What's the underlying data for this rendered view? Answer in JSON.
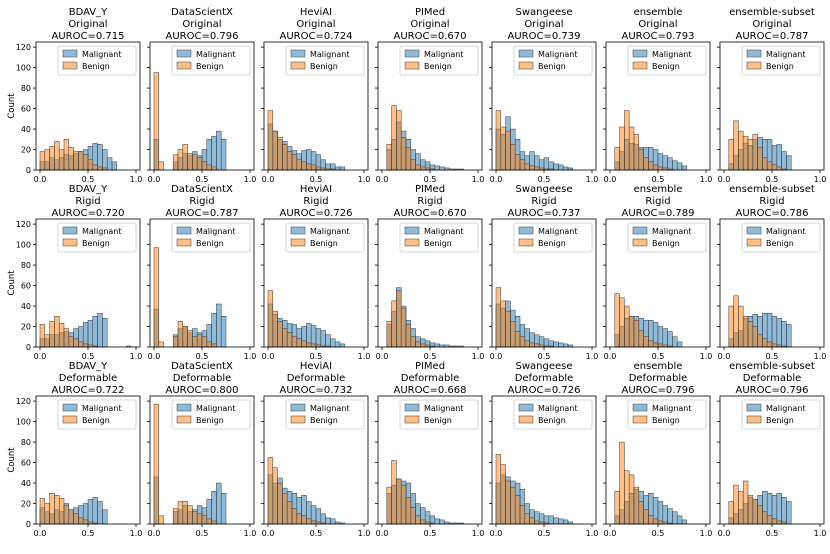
{
  "chart_data": {
    "type": "histogram-grid",
    "ylabel": "Count",
    "xlim": [
      0,
      1
    ],
    "ylim": [
      0,
      125
    ],
    "xticks": [
      "0.0",
      "0.5",
      "1.0"
    ],
    "yticks": [
      "0",
      "20",
      "40",
      "60",
      "80",
      "100",
      "120"
    ],
    "series": [
      {
        "key": "malignant",
        "name": "Malignant",
        "color": "#1f77b4"
      },
      {
        "key": "benign",
        "name": "Benign",
        "color": "#ff7f0e"
      }
    ],
    "panels": [
      {
        "team": "BDAV_Y",
        "variant": "Original",
        "auroc": "AUROC=0.715",
        "x0": 0.0,
        "binw": 0.05,
        "malignant": [
          8,
          8,
          12,
          10,
          12,
          15,
          14,
          16,
          18,
          20,
          23,
          26,
          25,
          20,
          12,
          8
        ],
        "benign": [
          18,
          20,
          23,
          28,
          20,
          30,
          22,
          18,
          18,
          15,
          10,
          5,
          3,
          2,
          0,
          0
        ]
      },
      {
        "team": "DataScientX",
        "variant": "Original",
        "auroc": "AUROC=0.796",
        "x0": 0.0,
        "binw": 0.05,
        "malignant": [
          30,
          0,
          0,
          0,
          8,
          12,
          16,
          14,
          18,
          14,
          20,
          30,
          33,
          38,
          30,
          0,
          0,
          0
        ],
        "benign": [
          95,
          8,
          0,
          0,
          15,
          20,
          25,
          16,
          15,
          12,
          8,
          5,
          3,
          0,
          0,
          0,
          0,
          0
        ]
      },
      {
        "team": "HeviAI",
        "variant": "Original",
        "auroc": "AUROC=0.724",
        "x0": 0.0,
        "binw": 0.05,
        "malignant": [
          45,
          38,
          30,
          28,
          23,
          19,
          16,
          19,
          20,
          18,
          15,
          10,
          6,
          6,
          3,
          3
        ],
        "benign": [
          58,
          38,
          32,
          25,
          18,
          15,
          10,
          8,
          6,
          5,
          3,
          2,
          1,
          1,
          0,
          0
        ]
      },
      {
        "team": "PIMed",
        "variant": "Original",
        "auroc": "AUROC=0.670",
        "x0": 0.05,
        "binw": 0.05,
        "malignant": [
          20,
          30,
          47,
          38,
          30,
          20,
          16,
          10,
          8,
          5,
          4,
          3,
          2,
          1,
          1,
          1
        ],
        "benign": [
          25,
          63,
          58,
          32,
          22,
          10,
          5,
          3,
          2,
          1,
          0,
          0,
          0,
          0,
          0,
          0
        ]
      },
      {
        "team": "Swangeese",
        "variant": "Original",
        "auroc": "AUROC=0.739",
        "x0": 0.0,
        "binw": 0.05,
        "malignant": [
          40,
          35,
          52,
          40,
          30,
          18,
          14,
          18,
          14,
          10,
          12,
          8,
          6,
          5,
          3,
          2
        ],
        "benign": [
          58,
          42,
          38,
          25,
          15,
          10,
          6,
          4,
          3,
          2,
          1,
          1,
          0,
          0,
          0,
          0
        ]
      },
      {
        "team": "ensemble",
        "variant": "Original",
        "auroc": "AUROC=0.793",
        "x0": 0.05,
        "binw": 0.05,
        "malignant": [
          8,
          18,
          30,
          26,
          25,
          22,
          22,
          22,
          20,
          16,
          14,
          12,
          9,
          7,
          4
        ],
        "benign": [
          22,
          42,
          58,
          42,
          35,
          20,
          12,
          8,
          5,
          3,
          2,
          1,
          0,
          0,
          0
        ]
      },
      {
        "team": "ensemble-subset",
        "variant": "Original",
        "auroc": "AUROC=0.787",
        "x0": 0.05,
        "binw": 0.05,
        "malignant": [
          6,
          14,
          20,
          26,
          24,
          30,
          32,
          30,
          30,
          24,
          25,
          18,
          14
        ],
        "benign": [
          30,
          48,
          38,
          33,
          30,
          35,
          22,
          12,
          8,
          5,
          3,
          1,
          0
        ]
      },
      {
        "team": "BDAV_Y",
        "variant": "Rigid",
        "auroc": "AUROC=0.720",
        "x0": 0.0,
        "binw": 0.05,
        "malignant": [
          8,
          8,
          12,
          12,
          14,
          15,
          14,
          18,
          20,
          24,
          26,
          30,
          33,
          28,
          0,
          0,
          0,
          0,
          0,
          0
        ],
        "benign": [
          22,
          12,
          25,
          30,
          23,
          18,
          10,
          8,
          5,
          3,
          2,
          1,
          0,
          0,
          0,
          0,
          0,
          0,
          1,
          0
        ]
      },
      {
        "team": "DataScientX",
        "variant": "Rigid",
        "auroc": "AUROC=0.787",
        "x0": 0.0,
        "binw": 0.05,
        "malignant": [
          37,
          0,
          0,
          0,
          12,
          18,
          20,
          14,
          18,
          14,
          16,
          22,
          33,
          42,
          30,
          0,
          0,
          0
        ],
        "benign": [
          97,
          5,
          0,
          0,
          10,
          25,
          20,
          16,
          10,
          12,
          10,
          5,
          3,
          0,
          0,
          0,
          0,
          0
        ]
      },
      {
        "team": "HeviAI",
        "variant": "Rigid",
        "auroc": "AUROC=0.726",
        "x0": 0.0,
        "binw": 0.05,
        "malignant": [
          42,
          32,
          28,
          26,
          23,
          22,
          18,
          20,
          23,
          21,
          18,
          16,
          12,
          8,
          5,
          3
        ],
        "benign": [
          55,
          35,
          25,
          18,
          14,
          10,
          8,
          6,
          4,
          3,
          2,
          1,
          1,
          0,
          0,
          0
        ]
      },
      {
        "team": "PIMed",
        "variant": "Rigid",
        "auroc": "AUROC=0.670",
        "x0": 0.05,
        "binw": 0.05,
        "malignant": [
          22,
          35,
          58,
          40,
          26,
          18,
          10,
          8,
          6,
          4,
          3,
          2,
          2,
          1,
          1,
          1
        ],
        "benign": [
          25,
          45,
          55,
          38,
          22,
          10,
          5,
          3,
          2,
          1,
          0,
          0,
          0,
          0,
          0,
          0
        ]
      },
      {
        "team": "Swangeese",
        "variant": "Rigid",
        "auroc": "AUROC=0.737",
        "x0": 0.0,
        "binw": 0.05,
        "malignant": [
          42,
          38,
          45,
          36,
          30,
          22,
          18,
          14,
          12,
          10,
          8,
          6,
          5,
          4,
          3,
          2
        ],
        "benign": [
          58,
          45,
          35,
          25,
          15,
          10,
          6,
          4,
          3,
          2,
          1,
          1,
          0,
          0,
          0,
          0
        ]
      },
      {
        "team": "ensemble",
        "variant": "Rigid",
        "auroc": "AUROC=0.789",
        "x0": 0.05,
        "binw": 0.05,
        "malignant": [
          12,
          20,
          28,
          30,
          30,
          28,
          26,
          26,
          24,
          20,
          18,
          15,
          10,
          5
        ],
        "benign": [
          52,
          48,
          40,
          30,
          26,
          16,
          10,
          6,
          4,
          3,
          2,
          1,
          0,
          0
        ]
      },
      {
        "team": "ensemble-subset",
        "variant": "Rigid",
        "auroc": "AUROC=0.786",
        "x0": 0.05,
        "binw": 0.05,
        "malignant": [
          8,
          14,
          16,
          28,
          30,
          32,
          30,
          33,
          33,
          30,
          28,
          25,
          22
        ],
        "benign": [
          40,
          50,
          40,
          30,
          25,
          20,
          12,
          8,
          5,
          3,
          2,
          1,
          0
        ]
      },
      {
        "team": "BDAV_Y",
        "variant": "Deformable",
        "auroc": "AUROC=0.722",
        "x0": 0.0,
        "binw": 0.05,
        "malignant": [
          16,
          12,
          10,
          14,
          12,
          20,
          14,
          16,
          18,
          20,
          24,
          26,
          22,
          14
        ],
        "benign": [
          25,
          20,
          30,
          28,
          25,
          18,
          14,
          10,
          6,
          4,
          2,
          1,
          0,
          0
        ]
      },
      {
        "team": "DataScientX",
        "variant": "Deformable",
        "auroc": "AUROC=0.800",
        "x0": 0.0,
        "binw": 0.05,
        "malignant": [
          46,
          0,
          0,
          0,
          12,
          14,
          18,
          12,
          14,
          18,
          16,
          24,
          32,
          40,
          30,
          0,
          0,
          0
        ],
        "benign": [
          117,
          8,
          0,
          0,
          15,
          22,
          22,
          18,
          12,
          10,
          8,
          5,
          3,
          0,
          0,
          0,
          0,
          0
        ]
      },
      {
        "team": "HeviAI",
        "variant": "Deformable",
        "auroc": "AUROC=0.732",
        "x0": 0.0,
        "binw": 0.05,
        "malignant": [
          48,
          40,
          45,
          35,
          32,
          30,
          26,
          28,
          22,
          18,
          15,
          10,
          6,
          5,
          2,
          1
        ],
        "benign": [
          65,
          55,
          40,
          30,
          22,
          15,
          10,
          8,
          5,
          3,
          2,
          1,
          0,
          0,
          0,
          0
        ]
      },
      {
        "team": "PIMed",
        "variant": "Deformable",
        "auroc": "AUROC=0.668",
        "x0": 0.05,
        "binw": 0.05,
        "malignant": [
          30,
          38,
          44,
          42,
          40,
          30,
          20,
          16,
          12,
          8,
          5,
          4,
          2,
          1,
          1,
          1
        ],
        "benign": [
          36,
          62,
          44,
          38,
          26,
          16,
          8,
          4,
          2,
          1,
          0,
          0,
          0,
          0,
          0,
          0
        ]
      },
      {
        "team": "Swangeese",
        "variant": "Deformable",
        "auroc": "AUROC=0.726",
        "x0": 0.0,
        "binw": 0.05,
        "malignant": [
          40,
          48,
          46,
          42,
          40,
          34,
          20,
          14,
          12,
          10,
          8,
          8,
          6,
          5,
          4,
          2
        ],
        "benign": [
          68,
          58,
          42,
          36,
          28,
          18,
          10,
          6,
          3,
          2,
          1,
          0,
          0,
          0,
          0,
          0
        ]
      },
      {
        "team": "ensemble",
        "variant": "Deformable",
        "auroc": "AUROC=0.796",
        "x0": 0.05,
        "binw": 0.05,
        "malignant": [
          8,
          14,
          22,
          30,
          34,
          32,
          28,
          30,
          26,
          22,
          18,
          15,
          12,
          8,
          4
        ],
        "benign": [
          32,
          80,
          52,
          48,
          36,
          22,
          14,
          8,
          5,
          3,
          2,
          1,
          0,
          0,
          0
        ]
      },
      {
        "team": "ensemble-subset",
        "variant": "Deformable",
        "auroc": "AUROC=0.796",
        "x0": 0.05,
        "binw": 0.05,
        "malignant": [
          6,
          10,
          14,
          20,
          26,
          24,
          28,
          32,
          30,
          28,
          30,
          26,
          22
        ],
        "benign": [
          22,
          38,
          32,
          42,
          28,
          24,
          18,
          12,
          8,
          5,
          3,
          2,
          0
        ]
      }
    ]
  }
}
